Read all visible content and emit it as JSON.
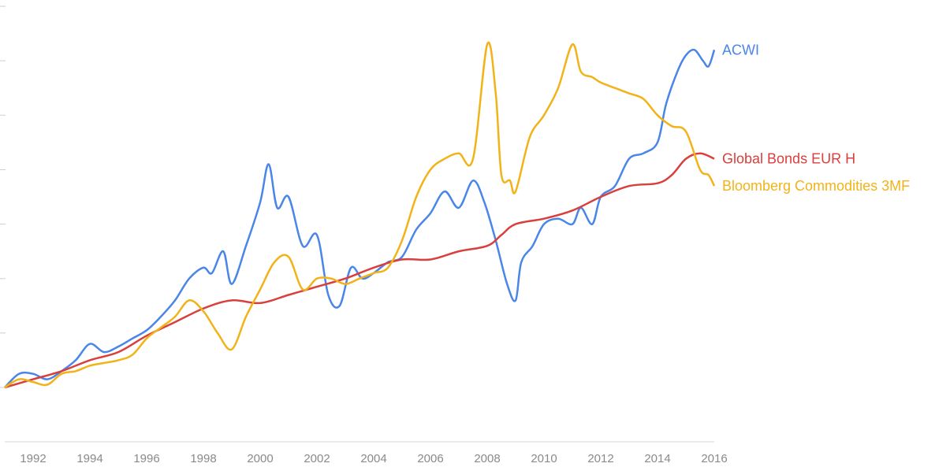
{
  "chart_data": {
    "type": "line",
    "title": "",
    "xlabel": "",
    "ylabel": "",
    "xlim": [
      1991.0,
      2016.0
    ],
    "ylim": [
      0,
      7
    ],
    "y_ticks_labeled": false,
    "grid": false,
    "legend": "inline labels at right end of lines",
    "x_ticks": [
      "1992",
      "1994",
      "1996",
      "1998",
      "2000",
      "2002",
      "2004",
      "2006",
      "2008",
      "2010",
      "2012",
      "2014",
      "2016"
    ],
    "series": [
      {
        "name": "ACWI",
        "color": "#4a86e8",
        "x": [
          1991.0,
          1991.5,
          1992.0,
          1992.5,
          1993.0,
          1993.5,
          1994.0,
          1994.5,
          1995.0,
          1995.5,
          1996.0,
          1996.5,
          1997.0,
          1997.5,
          1998.0,
          1998.3,
          1998.7,
          1999.0,
          1999.5,
          2000.0,
          2000.3,
          2000.6,
          2001.0,
          2001.5,
          2002.0,
          2002.4,
          2002.8,
          2003.2,
          2003.6,
          2004.0,
          2004.5,
          2005.0,
          2005.5,
          2006.0,
          2006.5,
          2007.0,
          2007.5,
          2007.9,
          2008.3,
          2008.7,
          2009.0,
          2009.2,
          2009.6,
          2010.0,
          2010.5,
          2011.0,
          2011.3,
          2011.7,
          2012.0,
          2012.5,
          2013.0,
          2013.5,
          2014.0,
          2014.3,
          2014.7,
          2015.0,
          2015.3,
          2015.6,
          2015.8,
          2016.0
        ],
        "values": [
          0.0,
          0.25,
          0.25,
          0.15,
          0.3,
          0.5,
          0.8,
          0.65,
          0.75,
          0.9,
          1.05,
          1.3,
          1.6,
          2.0,
          2.2,
          2.1,
          2.5,
          1.9,
          2.6,
          3.4,
          4.1,
          3.3,
          3.5,
          2.6,
          2.8,
          1.7,
          1.5,
          2.2,
          2.0,
          2.1,
          2.3,
          2.4,
          2.9,
          3.2,
          3.6,
          3.3,
          3.8,
          3.4,
          2.7,
          1.9,
          1.6,
          2.3,
          2.6,
          3.0,
          3.1,
          3.0,
          3.3,
          3.0,
          3.5,
          3.7,
          4.2,
          4.3,
          4.5,
          5.2,
          5.8,
          6.1,
          6.2,
          6.0,
          5.9,
          6.2
        ]
      },
      {
        "name": "Global Bonds EUR H",
        "color": "#d93f3c",
        "x": [
          1991.0,
          1992.0,
          1993.0,
          1994.0,
          1995.0,
          1996.0,
          1997.0,
          1998.0,
          1999.0,
          2000.0,
          2001.0,
          2002.0,
          2003.0,
          2004.0,
          2005.0,
          2006.0,
          2007.0,
          2008.0,
          2008.5,
          2009.0,
          2010.0,
          2011.0,
          2012.0,
          2013.0,
          2014.0,
          2014.5,
          2015.0,
          2015.5,
          2016.0
        ],
        "values": [
          0.0,
          0.15,
          0.3,
          0.5,
          0.65,
          0.95,
          1.2,
          1.45,
          1.6,
          1.55,
          1.7,
          1.85,
          2.0,
          2.2,
          2.35,
          2.35,
          2.5,
          2.6,
          2.8,
          3.0,
          3.1,
          3.25,
          3.5,
          3.7,
          3.75,
          3.9,
          4.2,
          4.3,
          4.2
        ]
      },
      {
        "name": "Bloomberg Commodities 3MF",
        "color": "#f1b318",
        "x": [
          1991.0,
          1991.5,
          1992.0,
          1992.5,
          1993.0,
          1993.5,
          1994.0,
          1994.5,
          1995.0,
          1995.5,
          1996.0,
          1996.5,
          1997.0,
          1997.5,
          1998.0,
          1998.5,
          1999.0,
          1999.5,
          2000.0,
          2000.5,
          2001.0,
          2001.5,
          2002.0,
          2002.5,
          2003.0,
          2003.5,
          2004.0,
          2004.5,
          2005.0,
          2005.5,
          2006.0,
          2006.5,
          2007.0,
          2007.5,
          2008.0,
          2008.3,
          2008.5,
          2008.8,
          2009.0,
          2009.5,
          2010.0,
          2010.5,
          2011.0,
          2011.3,
          2011.7,
          2012.0,
          2012.5,
          2013.0,
          2013.5,
          2014.0,
          2014.5,
          2015.0,
          2015.5,
          2015.8,
          2016.0
        ],
        "values": [
          0.0,
          0.15,
          0.1,
          0.05,
          0.25,
          0.3,
          0.4,
          0.45,
          0.5,
          0.6,
          0.9,
          1.1,
          1.3,
          1.6,
          1.4,
          1.0,
          0.7,
          1.3,
          1.8,
          2.3,
          2.4,
          1.8,
          2.0,
          2.0,
          1.9,
          2.0,
          2.1,
          2.2,
          2.7,
          3.5,
          4.0,
          4.2,
          4.3,
          4.2,
          6.3,
          5.4,
          3.9,
          3.8,
          3.6,
          4.6,
          5.0,
          5.5,
          6.3,
          5.8,
          5.7,
          5.6,
          5.5,
          5.4,
          5.3,
          5.0,
          4.8,
          4.7,
          4.0,
          3.9,
          3.7
        ]
      }
    ]
  }
}
